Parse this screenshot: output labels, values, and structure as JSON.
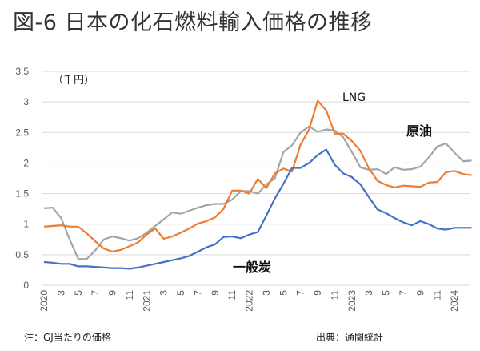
{
  "title": "図-6 日本の化石燃料輸入価格の推移",
  "note": "注：GJ当たりの価格",
  "source": "出典：通関統計",
  "chart_data": {
    "type": "line",
    "title": "図-6 日本の化石燃料輸入価格の推移",
    "ylabel": "（千円）",
    "ylim": [
      0,
      3.5
    ],
    "yticks": [
      "0",
      "0.5",
      "1",
      "1.5",
      "2",
      "2.5",
      "3",
      "3.5"
    ],
    "grid": true,
    "x_start": "2020-01",
    "x_tick_labels": [
      "2020",
      "3",
      "5",
      "7",
      "9",
      "11",
      "2021",
      "3",
      "5",
      "7",
      "9",
      "11",
      "2022",
      "3",
      "5",
      "7",
      "9",
      "11",
      "2023",
      "3",
      "5",
      "7",
      "9",
      "11",
      "2024"
    ],
    "series": [
      {
        "name": "原油",
        "color": "#A5A5A5",
        "label": "原油",
        "values": [
          1.26,
          1.27,
          1.1,
          0.75,
          0.43,
          0.43,
          0.57,
          0.75,
          0.8,
          0.77,
          0.73,
          0.77,
          0.86,
          0.97,
          1.08,
          1.19,
          1.17,
          1.22,
          1.27,
          1.31,
          1.33,
          1.33,
          1.4,
          1.54,
          1.54,
          1.5,
          1.65,
          1.75,
          2.18,
          2.29,
          2.5,
          2.6,
          2.51,
          2.55,
          2.53,
          2.42,
          2.18,
          1.93,
          1.89,
          1.9,
          1.82,
          1.93,
          1.89,
          1.9,
          1.94,
          2.09,
          2.27,
          2.32,
          2.17,
          2.03,
          2.04
        ]
      },
      {
        "name": "LNG",
        "color": "#ED7D31",
        "label": "LNG",
        "values": [
          0.96,
          0.97,
          0.98,
          0.96,
          0.96,
          0.85,
          0.72,
          0.6,
          0.55,
          0.58,
          0.64,
          0.7,
          0.83,
          0.93,
          0.76,
          0.8,
          0.86,
          0.93,
          1.01,
          1.05,
          1.11,
          1.25,
          1.55,
          1.55,
          1.5,
          1.74,
          1.59,
          1.83,
          1.91,
          1.86,
          2.3,
          2.55,
          3.02,
          2.86,
          2.48,
          2.48,
          2.36,
          2.2,
          1.91,
          1.71,
          1.64,
          1.6,
          1.63,
          1.62,
          1.61,
          1.68,
          1.69,
          1.85,
          1.87,
          1.82,
          1.8
        ]
      },
      {
        "name": "一般炭",
        "color": "#4472C4",
        "label": "一般炭",
        "values": [
          0.38,
          0.37,
          0.35,
          0.35,
          0.31,
          0.31,
          0.3,
          0.29,
          0.28,
          0.28,
          0.27,
          0.29,
          0.32,
          0.35,
          0.38,
          0.41,
          0.44,
          0.48,
          0.55,
          0.62,
          0.67,
          0.79,
          0.8,
          0.77,
          0.83,
          0.87,
          1.14,
          1.42,
          1.66,
          1.92,
          1.92,
          2.0,
          2.13,
          2.22,
          1.97,
          1.83,
          1.77,
          1.65,
          1.44,
          1.24,
          1.18,
          1.1,
          1.03,
          0.98,
          1.05,
          1.0,
          0.93,
          0.91,
          0.94,
          0.94,
          0.94
        ]
      }
    ]
  }
}
